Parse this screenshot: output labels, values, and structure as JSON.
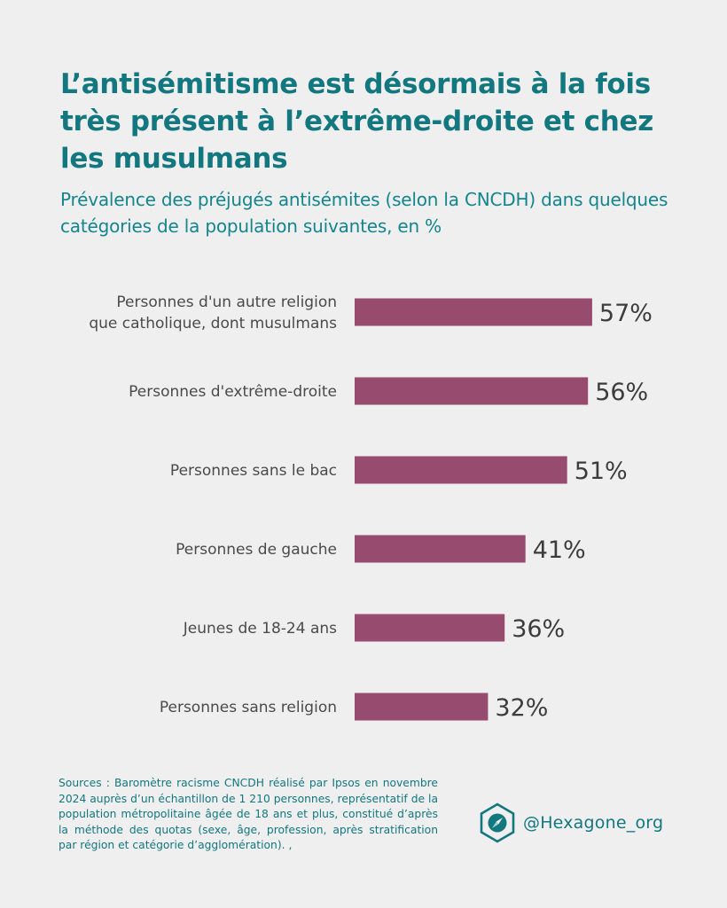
{
  "header": {
    "title": "L’antisémitisme est désormais à la fois très présent à l’extrême-droite et chez les musulmans",
    "subtitle": "Prévalence des préjugés antisémites (selon la CNCDH) dans quelques catégories de la population suivantes, en %"
  },
  "chart_data": {
    "type": "bar",
    "orientation": "horizontal",
    "categories": [
      [
        "Personnes d'un autre religion",
        "que catholique, dont musulmans"
      ],
      [
        "Personnes d'extrême-droite"
      ],
      [
        "Personnes sans le bac"
      ],
      [
        "Personnes de gauche"
      ],
      [
        "Jeunes de 18-24 ans"
      ],
      [
        "Personnes sans religion"
      ]
    ],
    "values": [
      57,
      56,
      51,
      41,
      36,
      32
    ],
    "value_labels": [
      "57%",
      "56%",
      "51%",
      "41%",
      "36%",
      "32%"
    ],
    "unit": "%",
    "xlim": [
      0,
      100
    ],
    "grid": false,
    "legend": "none",
    "bar_color": "#974b6e"
  },
  "footer": {
    "sources": "Sources : Baromètre racisme CNCDH réalisé par Ipsos en novembre 2024 auprès d’un échantillon de 1 210 personnes, représentatif de la population métropolitaine âgée de 18 ans et plus, constitué d’après la méthode des quotas (sexe, âge, profession, après stratification par région et catégorie d’agglomération). ,",
    "brand_icon": "hexagon-compass-icon",
    "brand_handle": "@Hexagone_org",
    "brand_color": "#12777f"
  }
}
